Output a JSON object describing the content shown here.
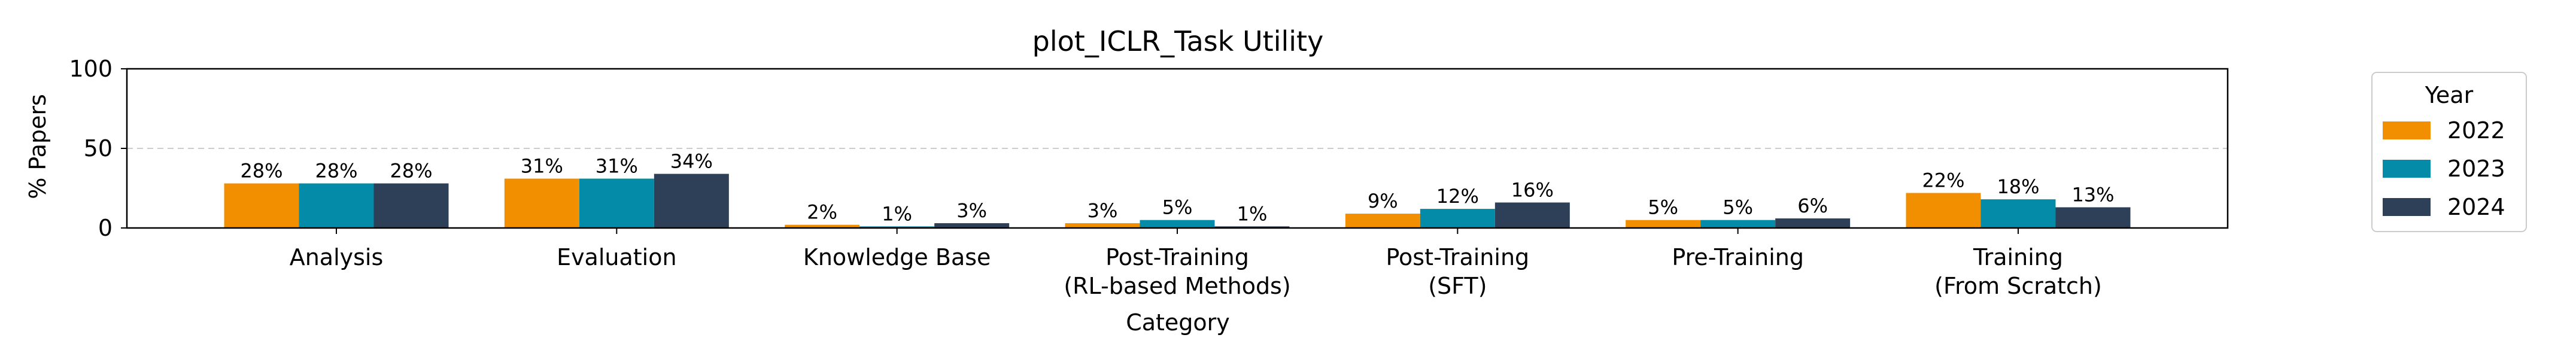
{
  "chart_data": {
    "type": "bar",
    "title": "plot_ICLR_Task Utility",
    "xlabel": "Category",
    "ylabel": "% Papers",
    "ylim": [
      0,
      100
    ],
    "yticks": [
      "0",
      "50",
      "100"
    ],
    "gridline_at": 50,
    "categories": [
      [
        "Analysis"
      ],
      [
        "Evaluation"
      ],
      [
        "Knowledge Base"
      ],
      [
        "Post-Training",
        "(RL-based Methods)"
      ],
      [
        "Post-Training",
        "(SFT)"
      ],
      [
        "Pre-Training"
      ],
      [
        "Training",
        "(From Scratch)"
      ]
    ],
    "legend": {
      "title": "Year",
      "placement": "outside-right"
    },
    "series": [
      {
        "name": "2022",
        "color": "#f18f01",
        "values": [
          28,
          31,
          2,
          3,
          9,
          5,
          22
        ],
        "labels": [
          "28%",
          "31%",
          "2%",
          "3%",
          "9%",
          "5%",
          "22%"
        ]
      },
      {
        "name": "2023",
        "color": "#048ba8",
        "values": [
          28,
          31,
          1,
          5,
          12,
          5,
          18
        ],
        "labels": [
          "28%",
          "31%",
          "1%",
          "5%",
          "12%",
          "5%",
          "18%"
        ]
      },
      {
        "name": "2024",
        "color": "#2e4057",
        "values": [
          28,
          34,
          3,
          1,
          16,
          6,
          13
        ],
        "labels": [
          "28%",
          "34%",
          "3%",
          "1%",
          "16%",
          "6%",
          "13%"
        ]
      }
    ]
  }
}
